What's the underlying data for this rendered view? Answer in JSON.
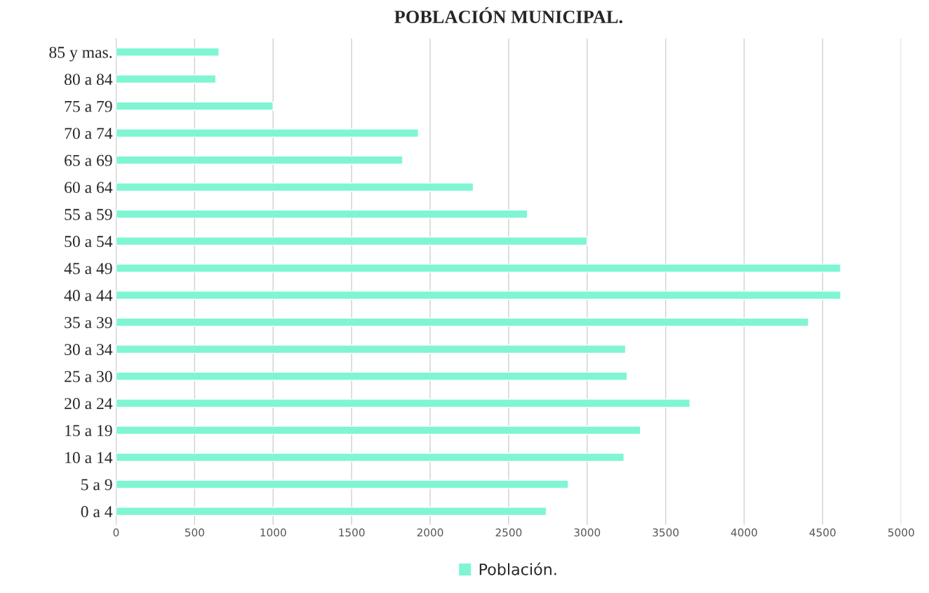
{
  "chart_data": {
    "type": "bar",
    "orientation": "horizontal",
    "title": "POBLACIÓN MUNICIPAL.",
    "categories": [
      "85 y mas.",
      "80 a 84",
      "75 a 79",
      "70 a 74",
      "65 a 69",
      "60 a 64",
      "55 a 59",
      "50 a 54",
      "45 a 49",
      "40 a 44",
      "35 a 39",
      "30 a 34",
      "25 a 30",
      "20 a 24",
      "15 a 19",
      "10 a 14",
      "5 a 9",
      "0 a 4"
    ],
    "series": [
      {
        "name": "Población.",
        "color": "#7ff5d3",
        "values": [
          655,
          635,
          1000,
          1925,
          1825,
          2275,
          2620,
          3000,
          4615,
          4615,
          4410,
          3245,
          3255,
          3655,
          3340,
          3235,
          2880,
          2740
        ]
      }
    ],
    "xlim": [
      0,
      5000
    ],
    "xticks": [
      0,
      500,
      1000,
      1500,
      2000,
      2500,
      3000,
      3500,
      4000,
      4500,
      5000
    ],
    "grid": "x",
    "legend": "bottom"
  }
}
